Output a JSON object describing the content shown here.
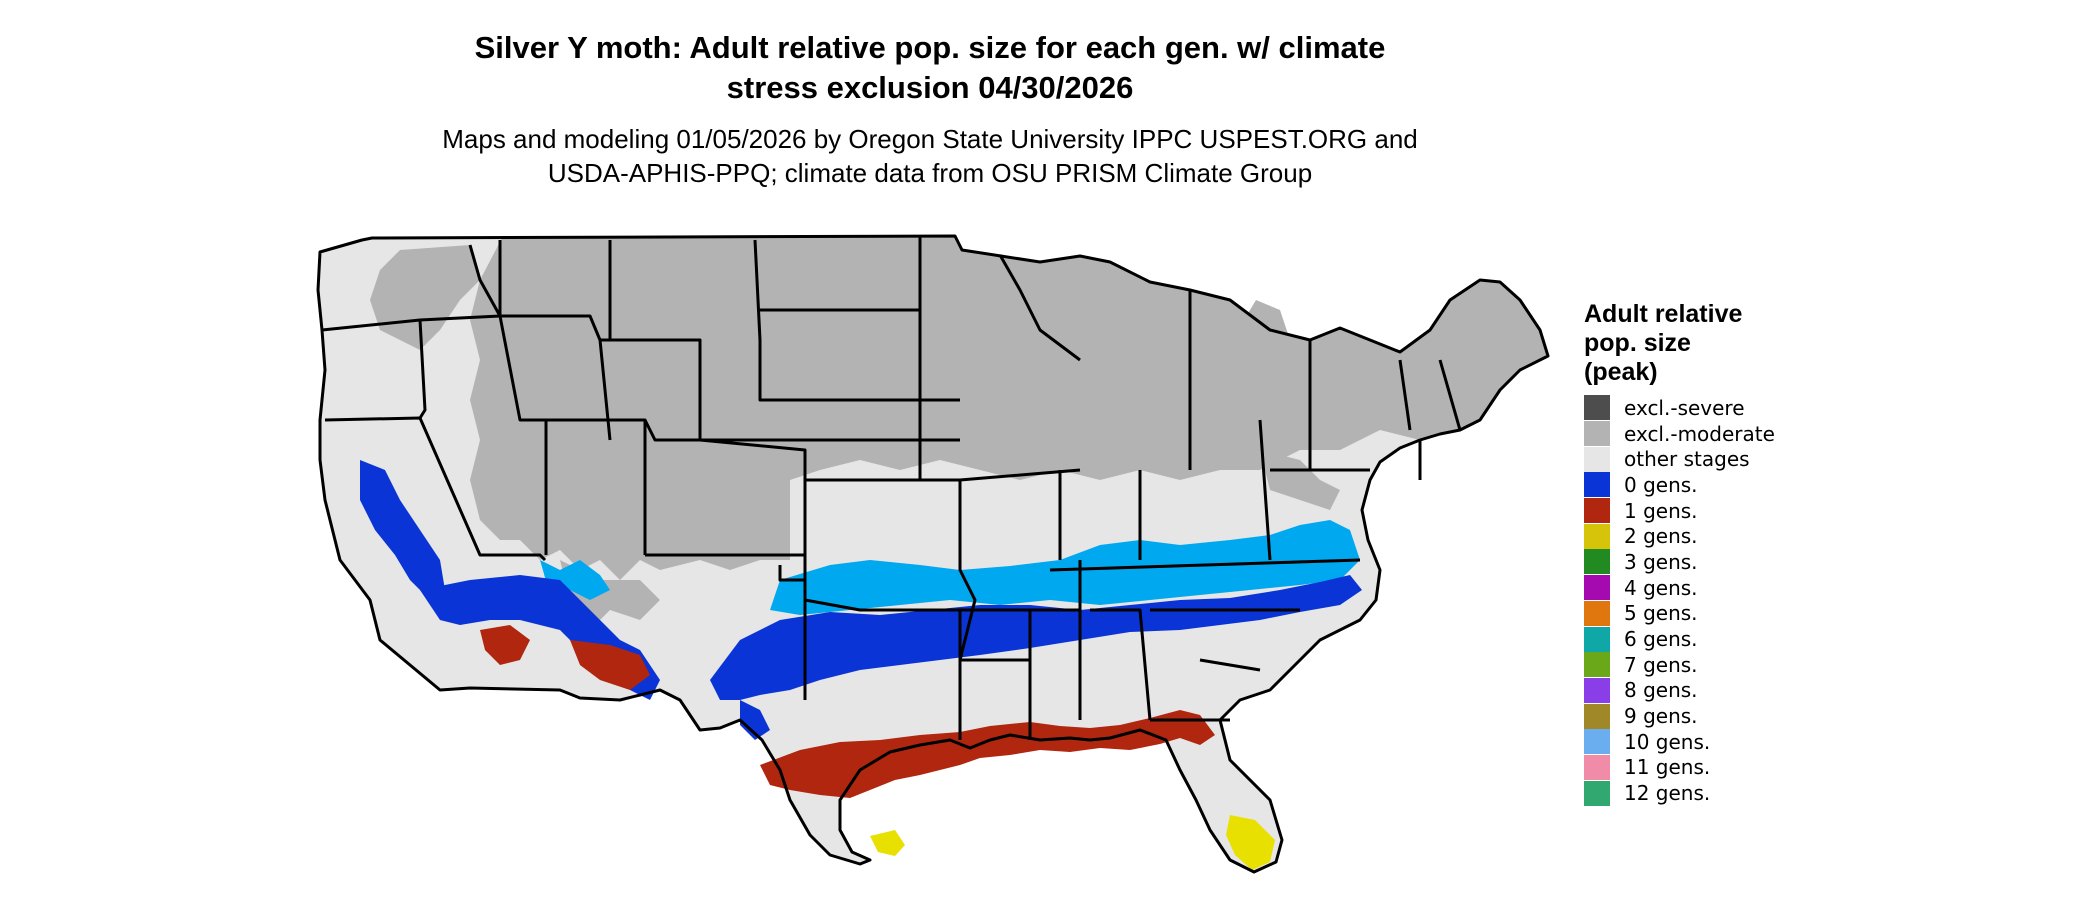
{
  "title_line1": "Silver Y moth: Adult relative pop. size for each gen. w/ climate",
  "title_line2": "stress exclusion 04/30/2026",
  "subtitle_line1": "Maps and modeling 01/05/2026 by Oregon State University IPPC USPEST.ORG and",
  "subtitle_line2": "USDA-APHIS-PPQ; climate data from OSU PRISM Climate Group",
  "legend": {
    "title_line1": "Adult relative",
    "title_line2": "pop. size",
    "title_line3": "(peak)",
    "items": [
      {
        "label": "excl.-severe",
        "color": "#4d4d4d"
      },
      {
        "label": "excl.-moderate",
        "color": "#b3b3b3"
      },
      {
        "label": "other stages",
        "color": "#e6e6e6"
      },
      {
        "label": "0 gens.",
        "color": "#0a34d6"
      },
      {
        "label": "1 gens.",
        "color": "#b0260f"
      },
      {
        "label": "2 gens.",
        "color": "#d6c40a"
      },
      {
        "label": "3 gens.",
        "color": "#218a21"
      },
      {
        "label": "4 gens.",
        "color": "#a40ab0"
      },
      {
        "label": "5 gens.",
        "color": "#e0760e"
      },
      {
        "label": "6 gens.",
        "color": "#10a8a6"
      },
      {
        "label": "7 gens.",
        "color": "#6aa81a"
      },
      {
        "label": "8 gens.",
        "color": "#8a3ee8"
      },
      {
        "label": "9 gens.",
        "color": "#a08828"
      },
      {
        "label": "10 gens.",
        "color": "#6aaef0"
      },
      {
        "label": "11 gens.",
        "color": "#f08ca8"
      },
      {
        "label": "12 gens.",
        "color": "#30a870"
      }
    ]
  },
  "map_colors": {
    "excluded_moderate": "#b3b3b3",
    "other_stages": "#e6e6e6",
    "zero_gens_dark": "#0a34d6",
    "zero_gens_light": "#00a8f0",
    "one_gen": "#b0260f",
    "two_gens": "#e8e000"
  }
}
